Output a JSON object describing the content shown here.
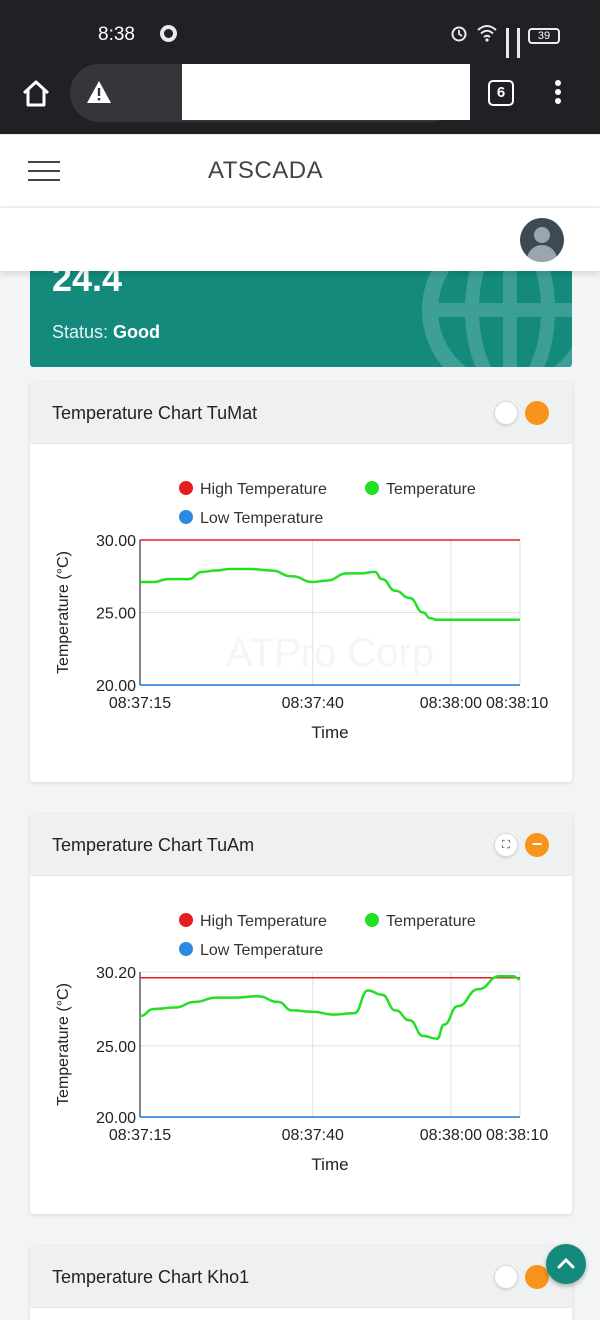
{
  "status_bar": {
    "time": "8:38",
    "battery": "39"
  },
  "browser": {
    "tab_count": "6"
  },
  "app": {
    "title": "ATSCADA"
  },
  "info_card": {
    "value": "24.4",
    "status_label": "Status:",
    "status_value": "Good"
  },
  "colors": {
    "teal": "#138a7c",
    "orange": "#f7941d",
    "high": "#e02020",
    "temp": "#22e022",
    "low": "#2a8ae0"
  },
  "legend": {
    "high": "High Temperature",
    "temp": "Temperature",
    "low": "Low Temperature"
  },
  "cards": [
    {
      "title": "Temperature Chart TuMat"
    },
    {
      "title": "Temperature Chart TuAm"
    },
    {
      "title": "Temperature Chart Kho1"
    }
  ],
  "chart_data": [
    {
      "type": "line",
      "title": "Temperature Chart TuMat",
      "xlabel": "Time",
      "ylabel": "Temperature (°C)",
      "x_ticks": [
        "08:37:15",
        "08:37:40",
        "08:38:00",
        "08:38:10"
      ],
      "y_ticks": [
        "20.00",
        "25.00",
        "30.00"
      ],
      "xlim": [
        15,
        70
      ],
      "ylim": [
        20,
        30
      ],
      "watermark": "ATPro Corp",
      "legend_position": "top",
      "series": [
        {
          "name": "High Temperature",
          "x": [
            15,
            70
          ],
          "values": [
            30,
            30
          ]
        },
        {
          "name": "Temperature",
          "x": [
            15,
            17,
            19,
            22,
            24,
            26,
            28,
            31,
            34,
            37,
            40,
            42,
            45,
            47,
            49,
            50,
            52,
            54,
            56,
            57,
            58,
            61,
            70
          ],
          "values": [
            27.1,
            27.1,
            27.3,
            27.3,
            27.8,
            27.9,
            28.0,
            28.0,
            27.9,
            27.5,
            27.1,
            27.2,
            27.7,
            27.7,
            27.8,
            27.3,
            26.5,
            26.0,
            25.0,
            24.6,
            24.5,
            24.5,
            24.5
          ]
        },
        {
          "name": "Low Temperature",
          "x": [
            15,
            70
          ],
          "values": [
            20,
            20
          ]
        }
      ]
    },
    {
      "type": "line",
      "title": "Temperature Chart TuAm",
      "xlabel": "Time",
      "ylabel": "Temperature (°C)",
      "x_ticks": [
        "08:37:15",
        "08:37:40",
        "08:38:00",
        "08:38:10"
      ],
      "y_ticks": [
        "20.00",
        "25.00",
        "30.20"
      ],
      "xlim": [
        15,
        70
      ],
      "ylim": [
        20,
        30.2
      ],
      "legend_position": "top",
      "series": [
        {
          "name": "High Temperature",
          "x": [
            15,
            70
          ],
          "values": [
            29.8,
            29.8
          ]
        },
        {
          "name": "Temperature",
          "x": [
            15,
            17,
            20,
            23,
            26,
            29,
            32,
            35,
            37,
            40,
            43,
            46,
            48,
            50,
            52,
            54,
            56,
            58,
            59,
            61,
            64,
            67,
            69,
            70
          ],
          "values": [
            27.1,
            27.6,
            27.7,
            28.1,
            28.4,
            28.4,
            28.5,
            28.1,
            27.5,
            27.4,
            27.2,
            27.3,
            28.9,
            28.6,
            27.5,
            26.8,
            25.7,
            25.5,
            26.5,
            27.8,
            29.0,
            29.9,
            29.9,
            29.7
          ]
        },
        {
          "name": "Low Temperature",
          "x": [
            15,
            70
          ],
          "values": [
            20,
            20
          ]
        }
      ]
    }
  ]
}
